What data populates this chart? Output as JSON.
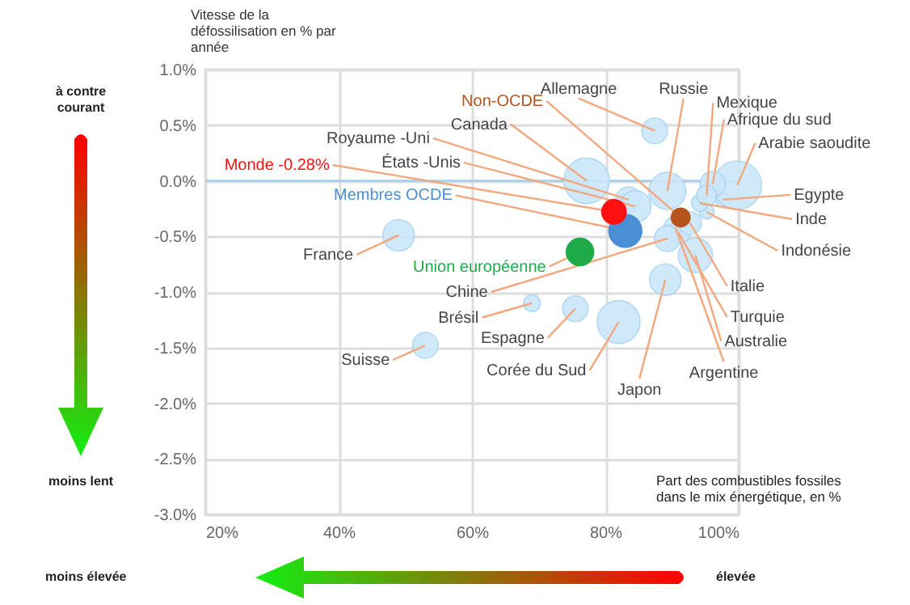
{
  "chart_data": {
    "type": "bubble",
    "ylabel": "Vitesse de la défossilisation en % par année",
    "xlabel": "Part des combustibles fossiles dans le mix énergétique, en %",
    "xlim": [
      20,
      100
    ],
    "xticks": [
      {
        "value": 20,
        "label": "20%"
      },
      {
        "value": 40,
        "label": "40%"
      },
      {
        "value": 60,
        "label": "60%"
      },
      {
        "value": 80,
        "label": "80%"
      },
      {
        "value": 100,
        "label": "100%"
      }
    ],
    "ylim": [
      -3,
      1
    ],
    "yticks": [
      {
        "value": 1,
        "label": "1.0%"
      },
      {
        "value": 0.5,
        "label": "0.5%"
      },
      {
        "value": 0,
        "label": "0.0%"
      },
      {
        "value": -0.5,
        "label": "-0.5%"
      },
      {
        "value": -1,
        "label": "-1.0%"
      },
      {
        "value": -1.5,
        "label": "-1.5%"
      },
      {
        "value": -2,
        "label": "-2.0%"
      },
      {
        "value": -2.5,
        "label": "-2.5%"
      },
      {
        "value": -3,
        "label": "-3.0%"
      }
    ],
    "grid": true,
    "legend": false,
    "ref_lines": [
      {
        "axis": "y",
        "value": 0,
        "color": "#9ccfee"
      }
    ],
    "annotations": [
      "à contre courant",
      "moins lent",
      "moins élevée",
      "élevée"
    ],
    "series": [
      {
        "name": "France",
        "color": "#cce7fa",
        "x": [
          49
        ],
        "values": [
          -0.49
        ],
        "sizes": [
          0.42
        ]
      },
      {
        "name": "Suisse",
        "color": "#cce7fa",
        "x": [
          53
        ],
        "values": [
          -1.48
        ],
        "sizes": [
          0.28
        ]
      },
      {
        "name": "Brésil",
        "color": "#cce7fa",
        "x": [
          69
        ],
        "values": [
          -1.1
        ],
        "sizes": [
          0.12
        ]
      },
      {
        "name": "Espagne",
        "color": "#cce7fa",
        "x": [
          75.5
        ],
        "values": [
          -1.15
        ],
        "sizes": [
          0.28
        ]
      },
      {
        "name": "Corée du Sud",
        "color": "#cce7fa",
        "x": [
          82
        ],
        "values": [
          -1.27
        ],
        "sizes": [
          0.78
        ]
      },
      {
        "name": "Japon",
        "color": "#cce7fa",
        "x": [
          89
        ],
        "values": [
          -0.89
        ],
        "sizes": [
          0.42
        ]
      },
      {
        "name": "Argentine",
        "color": "#cce7fa",
        "x": [
          90.5
        ],
        "values": [
          -0.42
        ],
        "sizes": [
          0.22
        ]
      },
      {
        "name": "Australie",
        "color": "#cce7fa",
        "x": [
          93.5
        ],
        "values": [
          -0.67
        ],
        "sizes": [
          0.5
        ]
      },
      {
        "name": "Turquie",
        "color": "#cce7fa",
        "x": [
          91
        ],
        "values": [
          -0.47
        ],
        "sizes": [
          0.22
        ]
      },
      {
        "name": "Italie",
        "color": "#cce7fa",
        "x": [
          92.7
        ],
        "values": [
          -0.38
        ],
        "sizes": [
          0.22
        ]
      },
      {
        "name": "Indonésie",
        "color": "#cce7fa",
        "x": [
          95.2
        ],
        "values": [
          -0.28
        ],
        "sizes": [
          0.09
        ]
      },
      {
        "name": "Inde",
        "color": "#cce7fa",
        "x": [
          94.2
        ],
        "values": [
          -0.2
        ],
        "sizes": [
          0.12
        ]
      },
      {
        "name": "Egypte",
        "color": "#cce7fa",
        "x": [
          97.6
        ],
        "values": [
          -0.17
        ],
        "sizes": [
          0.09
        ]
      },
      {
        "name": "Arabie saoudite",
        "color": "#cce7fa",
        "x": [
          99.8
        ],
        "values": [
          -0.04
        ],
        "sizes": [
          1
        ]
      },
      {
        "name": "Afrique du sud",
        "color": "#cce7fa",
        "x": [
          96.1
        ],
        "values": [
          -0.03
        ],
        "sizes": [
          0.28
        ]
      },
      {
        "name": "Mexique",
        "color": "#cce7fa",
        "x": [
          95.2
        ],
        "values": [
          -0.13
        ],
        "sizes": [
          0.17
        ]
      },
      {
        "name": "Russie",
        "color": "#cce7fa",
        "x": [
          89.3
        ],
        "values": [
          -0.09
        ],
        "sizes": [
          0.58
        ]
      },
      {
        "name": "Allemagne",
        "color": "#cce7fa",
        "x": [
          87.4
        ],
        "values": [
          0.45
        ],
        "sizes": [
          0.28
        ]
      },
      {
        "name": "Canada",
        "color": "#cce7fa",
        "x": [
          77.2
        ],
        "values": [
          0
        ],
        "sizes": [
          0.88
        ]
      },
      {
        "name": "Royaume -Uni",
        "color": "#cce7fa",
        "x": [
          83.5
        ],
        "values": [
          -0.17
        ],
        "sizes": [
          0.28
        ]
      },
      {
        "name": "États -Unis",
        "color": "#cce7fa",
        "x": [
          84.5
        ],
        "values": [
          -0.23
        ],
        "sizes": [
          0.42
        ]
      },
      {
        "name": "Chine",
        "color": "#cce7fa",
        "x": [
          89.3
        ],
        "values": [
          -0.52
        ],
        "sizes": [
          0.28
        ]
      },
      {
        "name": "Union européenne",
        "color": "#1eaa48",
        "x": [
          76.2
        ],
        "values": [
          -0.64
        ],
        "sizes": [
          0.35
        ]
      },
      {
        "name": "Membres OCDE",
        "color": "#4a8fd6",
        "x": [
          83
        ],
        "values": [
          -0.45
        ],
        "sizes": [
          0.5
        ]
      },
      {
        "name": "Non-OCDE",
        "color": "#b5531c",
        "x": [
          91.3
        ],
        "values": [
          -0.33
        ],
        "sizes": [
          0.17
        ]
      },
      {
        "name": "Monde -0.28%",
        "color": "#ff1010",
        "x": [
          81.3
        ],
        "values": [
          -0.28
        ],
        "sizes": [
          0.28
        ]
      }
    ]
  }
}
